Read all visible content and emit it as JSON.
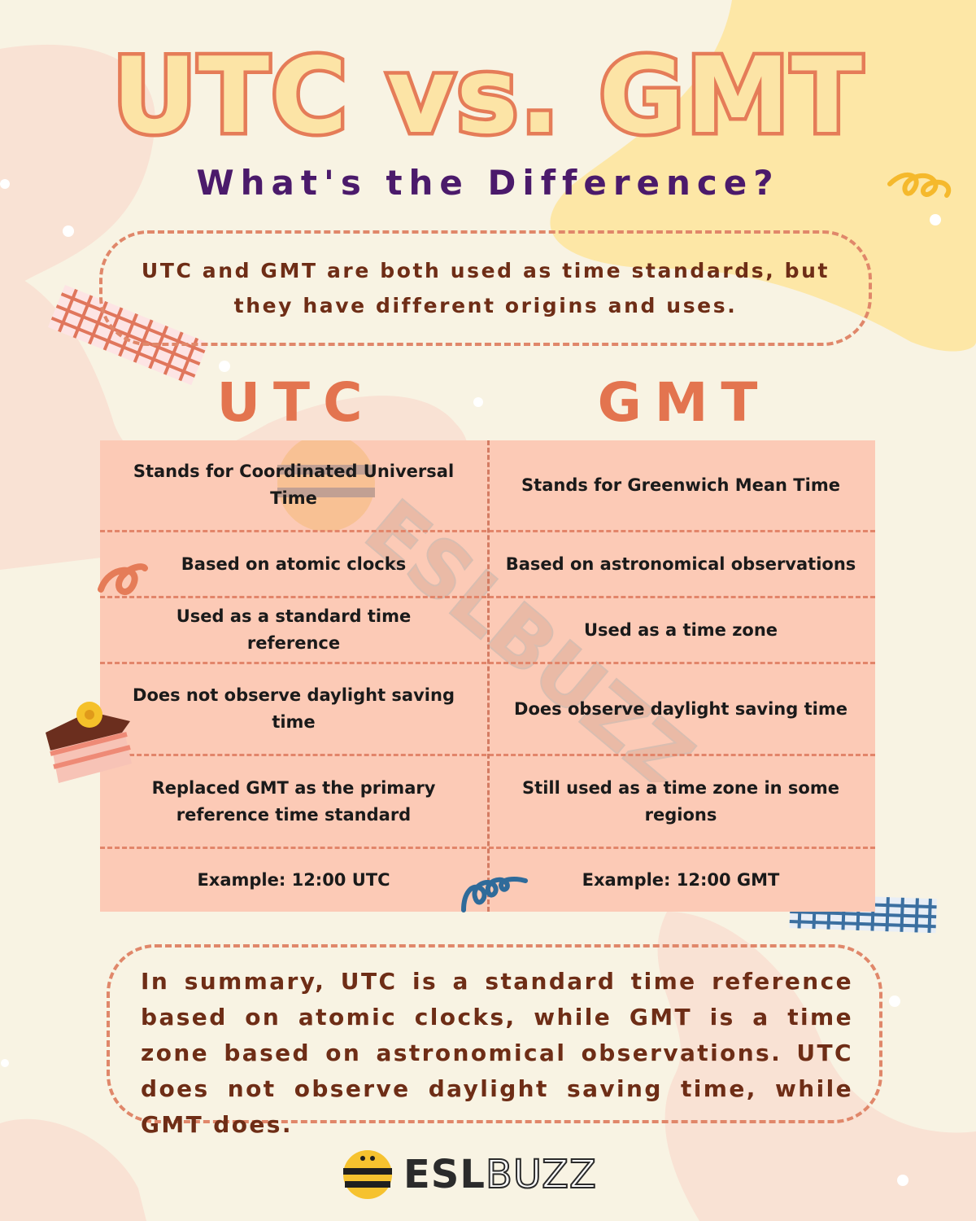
{
  "header": {
    "title": "UTC vs. GMT",
    "subtitle": "What's the Difference?"
  },
  "intro": "UTC and GMT are both used as time standards, but they have different origins and uses.",
  "columns": {
    "left": "UTC",
    "right": "GMT"
  },
  "rows": [
    {
      "utc": "Stands for Coordinated Universal Time",
      "gmt": "Stands for Greenwich Mean Time"
    },
    {
      "utc": "Based on atomic clocks",
      "gmt": "Based on astronomical observations"
    },
    {
      "utc": "Used as a standard time reference",
      "gmt": "Used as a time zone"
    },
    {
      "utc": "Does not observe daylight saving time",
      "gmt": "Does observe daylight saving time"
    },
    {
      "utc": "Replaced GMT as the primary reference time standard",
      "gmt": "Still used as a time zone in some regions"
    },
    {
      "utc": "Example: 12:00 UTC",
      "gmt": "Example: 12:00 GMT"
    }
  ],
  "summary": "In summary, UTC is a standard time reference based on atomic clocks, while GMT is a time zone based on astronomical observations. UTC does not observe daylight saving time, while GMT does.",
  "watermark": "ESLBUZZ",
  "logo": {
    "bold": "ESL",
    "light": "BUZZ"
  },
  "colors": {
    "background": "#f8f3e3",
    "title_fill": "#fce4a6",
    "title_outline": "#e57c58",
    "subtitle": "#4b1a6b",
    "accent": "#e3744f",
    "table_bg": "#fccab6",
    "body_text": "#6e2d16"
  }
}
